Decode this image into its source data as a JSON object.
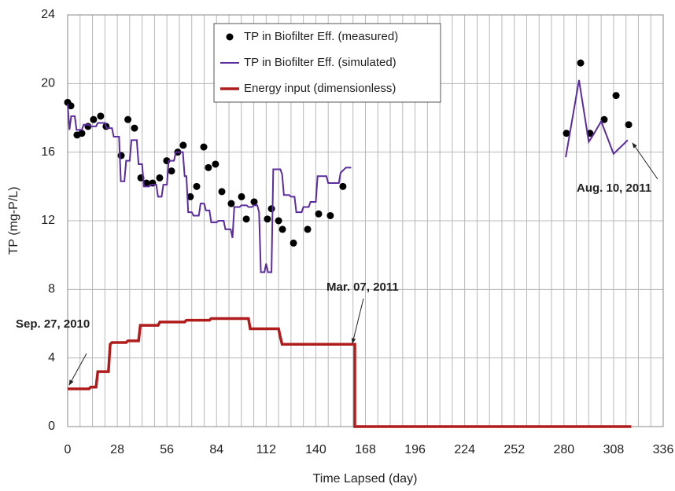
{
  "chart_data": {
    "type": "line",
    "x_label": "Time Lapsed (day)",
    "y_label": "TP (mg-P/L)",
    "xlim": [
      0,
      336
    ],
    "xticks": [
      0,
      28,
      56,
      84,
      112,
      140,
      168,
      196,
      224,
      252,
      280,
      308,
      336
    ],
    "xminorticks": [
      7,
      14,
      21,
      35,
      42,
      49,
      63,
      70,
      77,
      91,
      98,
      105,
      119,
      126,
      133,
      147,
      154,
      161,
      175,
      182,
      189,
      203,
      210,
      217,
      231,
      238,
      245,
      259,
      266,
      273,
      287,
      294,
      301,
      315,
      322,
      329
    ],
    "ylim": [
      0,
      24
    ],
    "yticks": [
      0,
      4,
      8,
      12,
      16,
      20,
      24
    ],
    "grid": true,
    "legend": "top",
    "series": [
      {
        "name": "TP in Biofilter Eff. (measured)",
        "kind": "scatter",
        "color": "#000000",
        "x": [
          0,
          1.8,
          5.3,
          8,
          11.5,
          14.6,
          18.6,
          21.7,
          30.2,
          34,
          37.7,
          41.3,
          44.4,
          47.9,
          51.9,
          55.9,
          58.6,
          62.1,
          65.2,
          69.2,
          72.8,
          76.8,
          79.4,
          83.4,
          87,
          92.3,
          98.1,
          100.8,
          105.2,
          112.7,
          115,
          119,
          121.2,
          127.4,
          135.4,
          141.6,
          148.2,
          155.3,
          281.4,
          289.4,
          294.7,
          302.7,
          309.4,
          316.5
        ],
        "values": [
          18.9,
          18.7,
          17.0,
          17.1,
          17.5,
          17.9,
          18.1,
          17.5,
          15.8,
          17.9,
          17.4,
          14.5,
          14.2,
          14.2,
          14.5,
          15.5,
          14.9,
          16.0,
          16.4,
          13.4,
          14.0,
          16.3,
          15.1,
          15.3,
          13.7,
          13.0,
          13.4,
          12.1,
          13.1,
          12.1,
          12.7,
          12.0,
          11.5,
          10.7,
          11.5,
          12.4,
          12.3,
          14.0,
          17.1,
          21.2,
          17.1,
          17.9,
          19.3,
          17.6
        ]
      },
      {
        "name": "TP in Biofilter Eff. (simulated)",
        "kind": "line",
        "color": "#5b2c9e",
        "x": [
          0,
          1,
          2,
          4,
          5,
          8,
          9,
          12,
          13,
          16,
          17,
          21,
          22,
          25,
          26,
          29,
          30,
          32,
          33,
          35,
          36,
          39,
          40,
          42,
          43,
          46,
          47,
          50,
          51,
          53,
          54,
          56,
          57,
          60,
          61,
          65,
          66,
          67,
          68,
          70,
          71,
          74,
          75,
          77,
          78,
          80,
          81,
          84,
          85,
          88,
          89,
          92,
          93,
          94,
          97,
          98,
          101,
          102,
          104,
          105,
          107,
          108,
          109,
          111,
          112,
          113,
          115,
          116,
          120,
          121,
          122,
          125,
          126,
          128,
          129,
          132,
          133,
          136,
          137,
          140,
          141,
          146,
          147,
          153,
          154,
          157,
          160,
          220,
          281,
          288.5,
          294,
          296.5,
          301,
          308,
          316
        ],
        "values": [
          18.8,
          17.3,
          18.1,
          18.1,
          17.3,
          17.3,
          17.6,
          17.6,
          17.5,
          17.5,
          17.7,
          17.7,
          17.4,
          17.4,
          16.9,
          16.9,
          14.3,
          14.3,
          15.5,
          15.5,
          16.7,
          16.7,
          15.3,
          15.3,
          14.0,
          14.0,
          14.1,
          14.1,
          13.4,
          13.4,
          14.1,
          14.1,
          15.5,
          15.5,
          16.0,
          16.0,
          14.6,
          14.6,
          12.5,
          12.5,
          12.3,
          12.3,
          13.0,
          13.0,
          12.6,
          12.6,
          11.9,
          11.9,
          12.0,
          12.0,
          11.5,
          11.5,
          11.0,
          12.8,
          12.8,
          12.9,
          12.9,
          12.8,
          12.8,
          12.9,
          12.9,
          12.5,
          9.0,
          9.0,
          9.5,
          9.0,
          9.0,
          15.0,
          15.0,
          14.7,
          13.5,
          13.5,
          13.4,
          13.4,
          12.5,
          12.5,
          12.8,
          12.8,
          13.1,
          13.1,
          14.6,
          14.6,
          14.2,
          14.2,
          14.8,
          15.1,
          15.1,
          null,
          15.7,
          20.2,
          16.6,
          17.0,
          17.8,
          15.9,
          16.7
        ]
      },
      {
        "name": "Energy input (dimensionless)",
        "kind": "line",
        "color": "#b01c1c",
        "width": 3.5,
        "x": [
          0,
          12,
          13,
          16,
          17,
          23,
          24,
          25,
          33,
          34,
          40,
          41,
          51,
          52,
          66,
          67,
          80,
          81,
          102,
          103,
          119,
          120,
          121,
          162,
          162,
          318
        ],
        "values": [
          2.2,
          2.2,
          2.3,
          2.3,
          3.2,
          3.2,
          4.8,
          4.9,
          4.9,
          5.0,
          5.0,
          5.9,
          5.9,
          6.1,
          6.1,
          6.2,
          6.2,
          6.3,
          6.3,
          5.7,
          5.7,
          5.2,
          4.8,
          4.8,
          0,
          0
        ]
      }
    ],
    "annotations": [
      "Sep. 27, 2010",
      "Mar. 07, 2011",
      "Aug. 10, 2011"
    ]
  }
}
